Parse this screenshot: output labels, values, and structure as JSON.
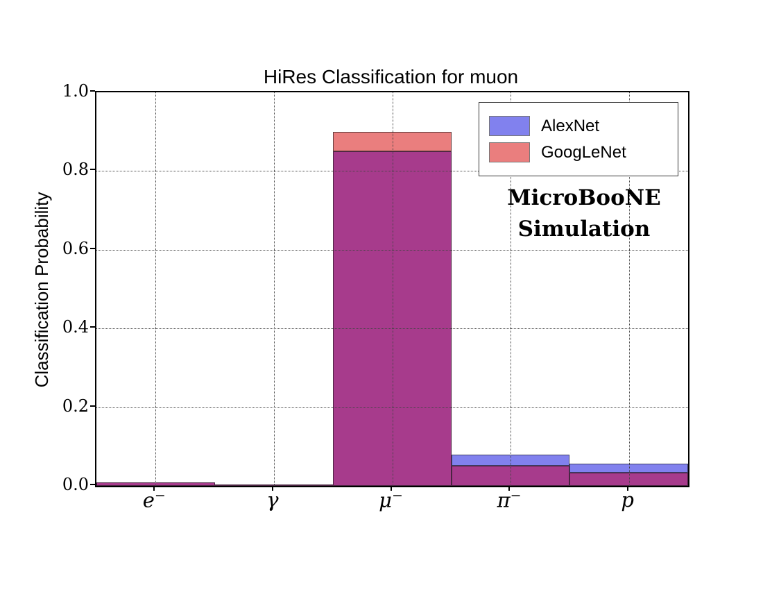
{
  "figure": {
    "background": "#ffffff",
    "annotation_lines": [
      "MicroBooNE",
      "Simulation"
    ]
  },
  "chart_data": {
    "type": "bar",
    "title": "HiRes Classification for muon",
    "xlabel": "",
    "ylabel": "Classification Probability",
    "categories": [
      "e⁻",
      "γ",
      "μ⁻",
      "π⁻",
      "p"
    ],
    "series": [
      {
        "name": "AlexNet",
        "color": "#8181ee",
        "values": [
          0.008,
          0.004,
          0.85,
          0.08,
          0.056
        ]
      },
      {
        "name": "GoogLeNet",
        "color": "#ea7e7e",
        "values": [
          0.008,
          0.004,
          0.9,
          0.051,
          0.034
        ]
      }
    ],
    "overlap_color": "#a73b8c",
    "bar_edge_color": "#2a2a2a",
    "ylim": [
      0.0,
      1.0
    ],
    "yticks": [
      "0.0",
      "0.2",
      "0.4",
      "0.6",
      "0.8",
      "1.0"
    ],
    "grid": "dotted, horizontal at yticks and vertical at category centers, drawn over bars",
    "legend_position": "upper right",
    "annotation": "MicroBooNE Simulation"
  }
}
